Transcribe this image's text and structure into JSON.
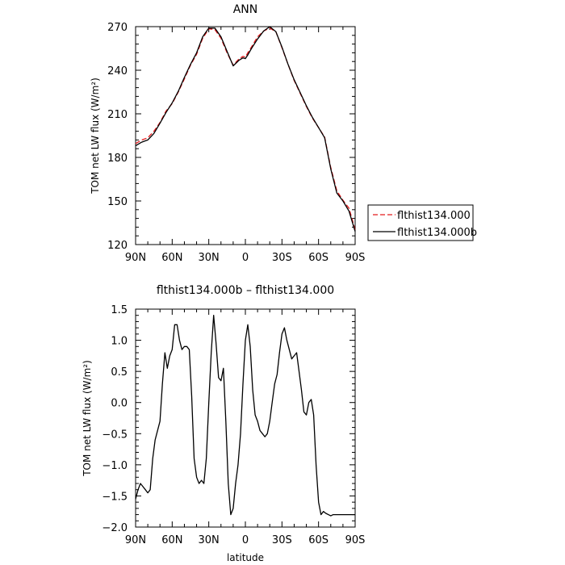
{
  "chart_data": [
    {
      "type": "line",
      "title": "ANN",
      "xlabel": "",
      "ylabel": "TOM net LW flux (W/m²)",
      "x_tick_labels": [
        "90N",
        "60N",
        "30N",
        "0",
        "30S",
        "60S",
        "90S"
      ],
      "x_tick_values": [
        90,
        60,
        30,
        0,
        -30,
        -60,
        -90
      ],
      "y_ticks": [
        120,
        150,
        180,
        210,
        240,
        270
      ],
      "xlim": [
        90,
        -90
      ],
      "ylim": [
        120,
        270
      ],
      "grid": false,
      "legend_position": "right",
      "series": [
        {
          "name": "flthist134.000",
          "color": "#e41a1c",
          "dash": "dashed",
          "x": [
            90,
            85,
            80,
            75,
            70,
            65,
            60,
            55,
            50,
            45,
            40,
            35,
            30,
            25,
            20,
            15,
            10,
            5,
            2,
            0,
            -2,
            -5,
            -10,
            -15,
            -20,
            -25,
            -30,
            -35,
            -40,
            -45,
            -50,
            -55,
            -60,
            -65,
            -70,
            -75,
            -80,
            -85,
            -90
          ],
          "values": [
            189.5,
            192,
            193.5,
            198,
            204,
            212,
            217,
            225,
            234,
            243.5,
            251,
            262,
            268.5,
            268,
            262,
            252,
            243.5,
            248,
            249.5,
            249,
            252,
            256,
            263,
            267,
            269,
            266.5,
            255.5,
            244,
            233,
            224,
            215,
            207,
            200.5,
            194,
            173,
            157,
            150.5,
            145,
            130
          ]
        },
        {
          "name": "flthist134.000b",
          "color": "#000000",
          "dash": "solid",
          "x": [
            90,
            85,
            80,
            75,
            70,
            65,
            60,
            55,
            50,
            45,
            40,
            35,
            30,
            25,
            20,
            15,
            10,
            5,
            2,
            0,
            -2,
            -5,
            -10,
            -15,
            -20,
            -25,
            -30,
            -35,
            -40,
            -45,
            -50,
            -55,
            -60,
            -65,
            -70,
            -75,
            -80,
            -85,
            -90
          ],
          "values": [
            188,
            190.5,
            192,
            196.5,
            203.5,
            211,
            217.5,
            225.5,
            235,
            244,
            252,
            263,
            269,
            269,
            263,
            253,
            243,
            247,
            248.5,
            248,
            250.5,
            255,
            261.5,
            267,
            270,
            266.5,
            256,
            244,
            233.5,
            224.5,
            215.5,
            207.5,
            200.5,
            193.5,
            172,
            155.5,
            150,
            143,
            129
          ]
        }
      ]
    },
    {
      "type": "line",
      "title": "flthist134.000b – flthist134.000",
      "xlabel": "latitude",
      "ylabel": "TOM net LW flux (W/m²)",
      "x_tick_labels": [
        "90N",
        "60N",
        "30N",
        "0",
        "30S",
        "60S",
        "90S"
      ],
      "x_tick_values": [
        90,
        60,
        30,
        0,
        -30,
        -60,
        -90
      ],
      "y_ticks": [
        -2.0,
        -1.5,
        -1.0,
        -0.5,
        0.0,
        0.5,
        1.0,
        1.5
      ],
      "y_tick_labels": [
        "−2.0",
        "−1.5",
        "−1.0",
        "−0.5",
        "0.0",
        "0.5",
        "1.0",
        "1.5"
      ],
      "xlim": [
        90,
        -90
      ],
      "ylim": [
        -2.0,
        1.5
      ],
      "grid": false,
      "series": [
        {
          "color": "#000000",
          "x": [
            90,
            88,
            86,
            84,
            82,
            80,
            78,
            76,
            74,
            72,
            70,
            68,
            66,
            64,
            62,
            60,
            58,
            56,
            54,
            52,
            50,
            48,
            46,
            44,
            42,
            40,
            38,
            36,
            34,
            32,
            30,
            28,
            26,
            24,
            22,
            20,
            18,
            16,
            14,
            12,
            10,
            8,
            6,
            4,
            2,
            0,
            -2,
            -4,
            -6,
            -8,
            -10,
            -12,
            -14,
            -16,
            -18,
            -20,
            -22,
            -24,
            -26,
            -28,
            -30,
            -32,
            -34,
            -36,
            -38,
            -40,
            -42,
            -44,
            -46,
            -48,
            -50,
            -52,
            -54,
            -56,
            -58,
            -60,
            -62,
            -64,
            -66,
            -68,
            -70,
            -72,
            -74,
            -76,
            -78,
            -80,
            -82,
            -84,
            -86,
            -88,
            -90
          ],
          "values": [
            -1.55,
            -1.4,
            -1.3,
            -1.35,
            -1.4,
            -1.45,
            -1.4,
            -0.9,
            -0.6,
            -0.45,
            -0.3,
            0.3,
            0.8,
            0.55,
            0.75,
            0.85,
            1.25,
            1.25,
            1.0,
            0.85,
            0.9,
            0.9,
            0.85,
            0.1,
            -0.9,
            -1.2,
            -1.3,
            -1.25,
            -1.3,
            -0.9,
            0.0,
            0.8,
            1.4,
            0.95,
            0.4,
            0.35,
            0.55,
            -0.3,
            -1.3,
            -1.8,
            -1.7,
            -1.3,
            -1.0,
            -0.5,
            0.3,
            1.0,
            1.25,
            0.9,
            0.2,
            -0.2,
            -0.3,
            -0.45,
            -0.5,
            -0.55,
            -0.5,
            -0.3,
            0.0,
            0.3,
            0.45,
            0.8,
            1.1,
            1.2,
            1.0,
            0.85,
            0.7,
            0.75,
            0.8,
            0.5,
            0.2,
            -0.15,
            -0.2,
            0.0,
            0.05,
            -0.2,
            -1.0,
            -1.6,
            -1.8,
            -1.75,
            -1.78,
            -1.8,
            -1.82,
            -1.8,
            -1.8,
            -1.8,
            -1.8,
            -1.8,
            -1.8,
            -1.8,
            -1.8,
            -1.8,
            -1.8
          ]
        }
      ]
    }
  ]
}
